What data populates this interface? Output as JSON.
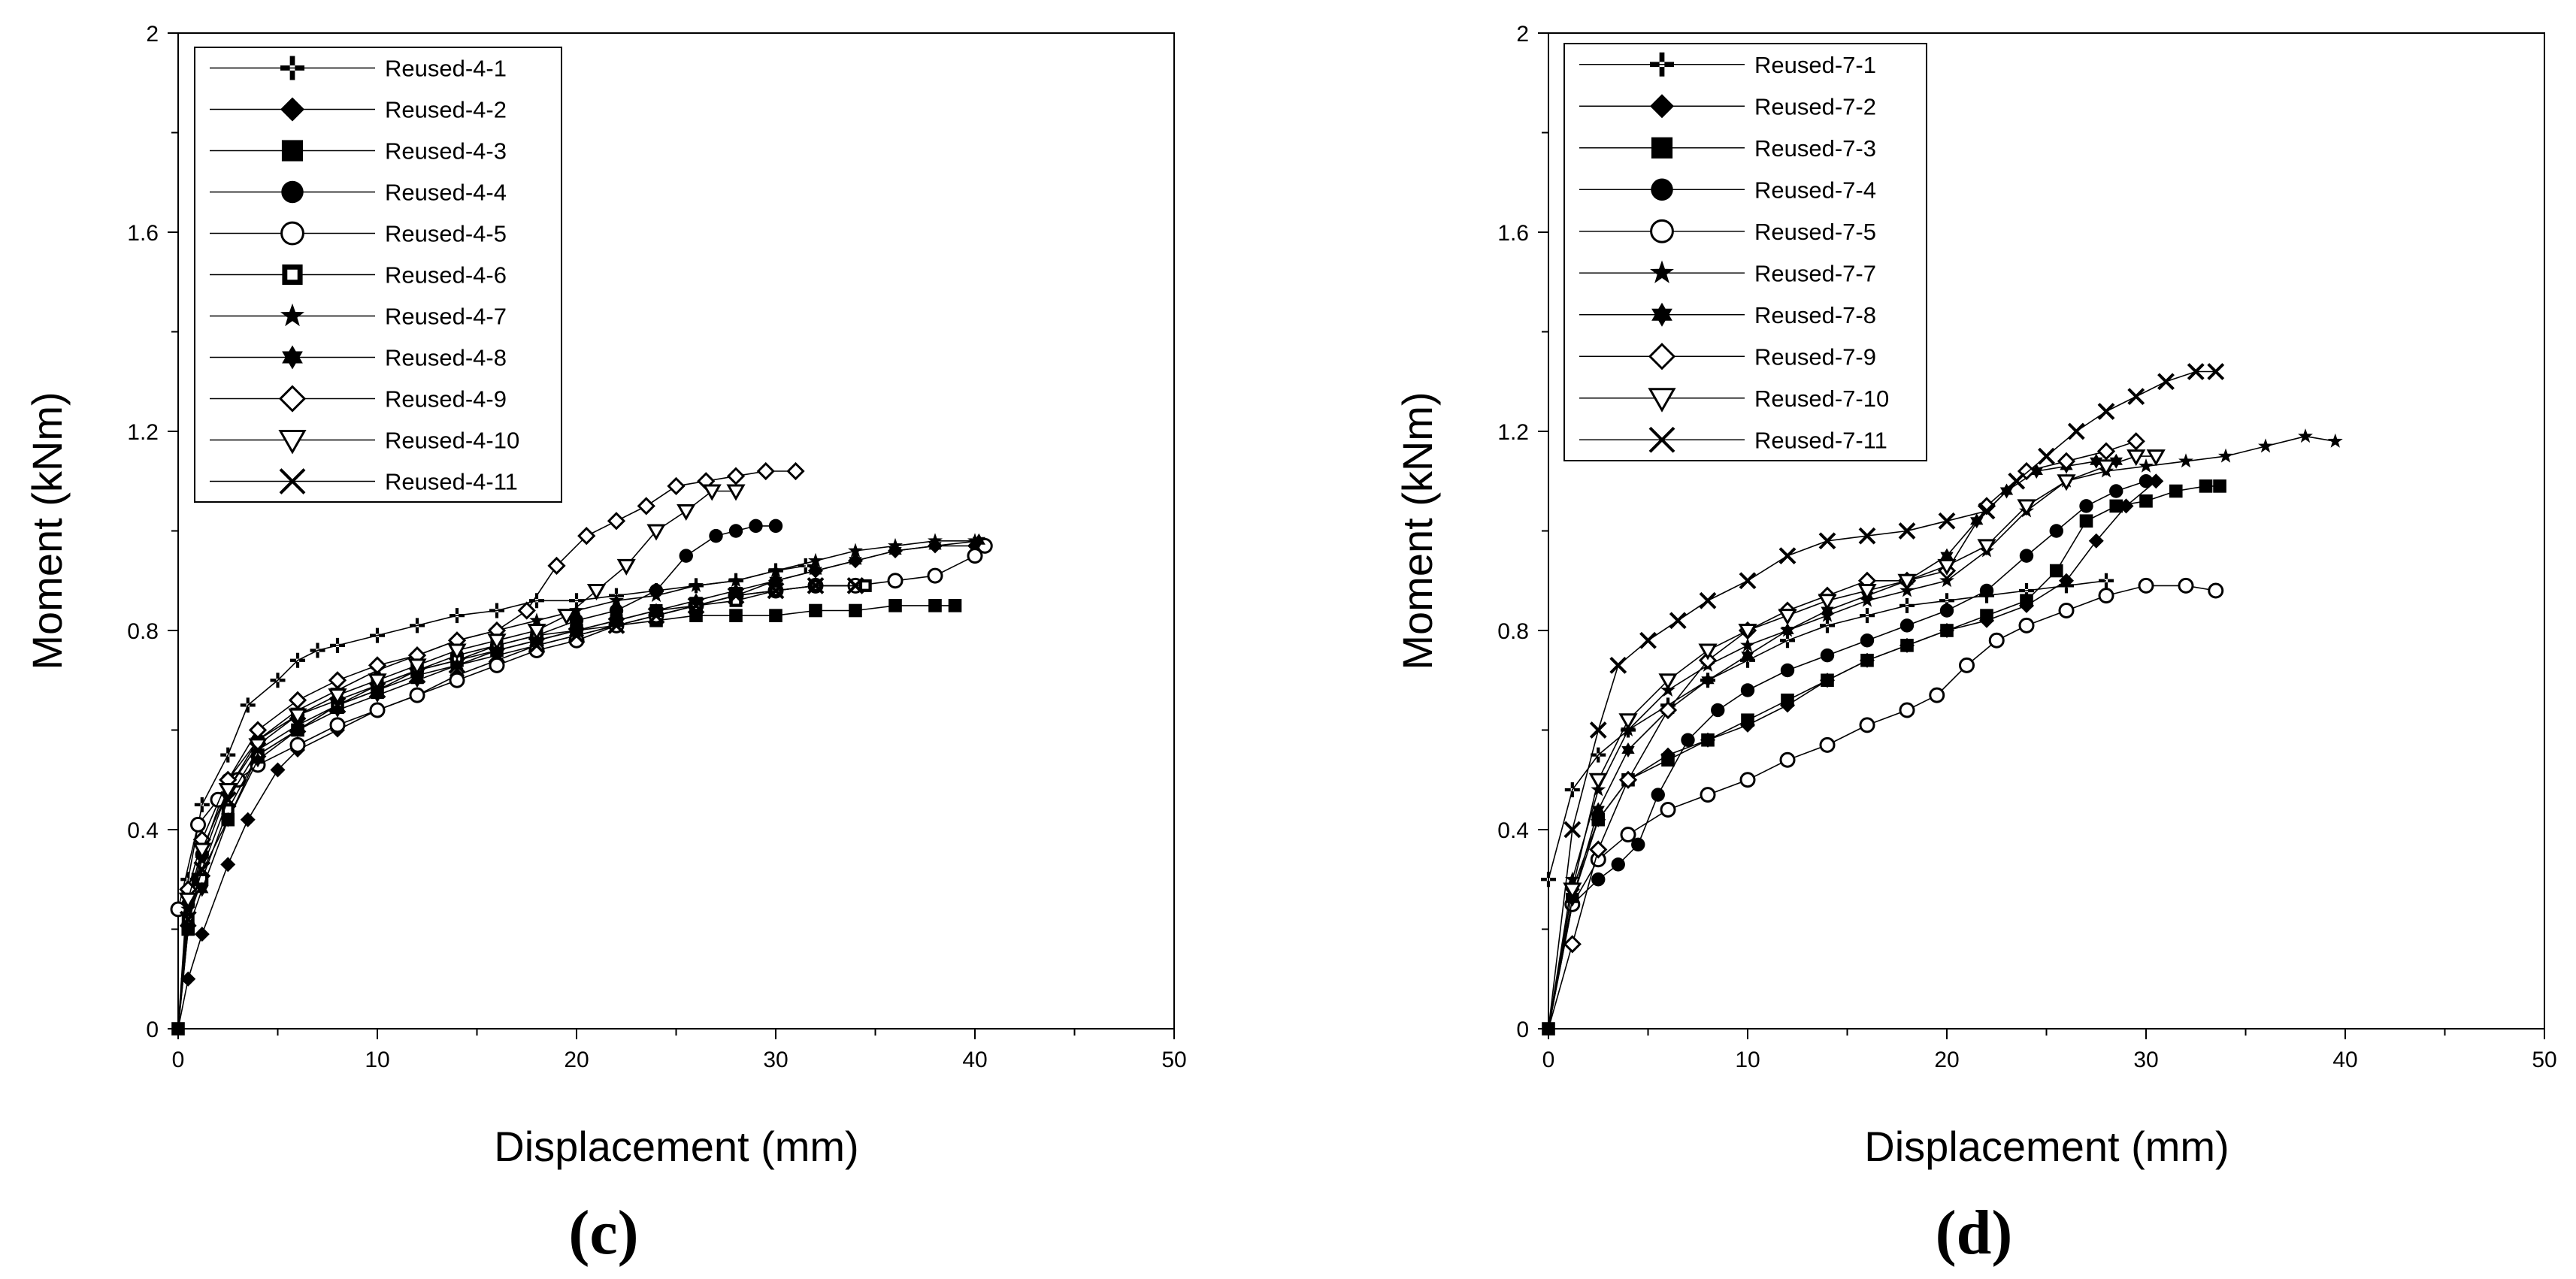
{
  "chart_data": [
    {
      "type": "line",
      "panel_label": "(c)",
      "xlabel": "Displacement (mm)",
      "ylabel": "Moment (kNm)",
      "xlim": [
        0,
        50
      ],
      "ylim": [
        0,
        2
      ],
      "xticks": [
        0,
        10,
        20,
        30,
        40,
        50
      ],
      "yticks": [
        0,
        0.4,
        0.8,
        1.2,
        1.6,
        2
      ],
      "ytick_labels": [
        "0",
        "0.4",
        "0.8",
        "1.2",
        "1.6",
        "2"
      ],
      "grid": false,
      "legend_position": "top-left",
      "series": [
        {
          "name": "Reused-4-1",
          "marker": "plus",
          "x": [
            0,
            0.5,
            1.2,
            2.5,
            3.5,
            5,
            6,
            7,
            8,
            10,
            12,
            14,
            16,
            18,
            20,
            22,
            24,
            26,
            28,
            30,
            31.5
          ],
          "y": [
            0,
            0.3,
            0.45,
            0.55,
            0.65,
            0.7,
            0.74,
            0.76,
            0.77,
            0.79,
            0.81,
            0.83,
            0.84,
            0.86,
            0.86,
            0.87,
            0.88,
            0.89,
            0.9,
            0.92,
            0.93
          ]
        },
        {
          "name": "Reused-4-2",
          "marker": "diamond",
          "x": [
            0,
            0.5,
            1.2,
            2.5,
            3.5,
            5,
            6,
            8,
            10,
            12,
            14,
            16,
            18,
            20,
            22,
            24,
            26,
            28,
            30,
            32,
            34,
            36,
            38,
            40
          ],
          "y": [
            0,
            0.1,
            0.19,
            0.33,
            0.42,
            0.52,
            0.56,
            0.6,
            0.64,
            0.67,
            0.71,
            0.74,
            0.77,
            0.79,
            0.81,
            0.83,
            0.85,
            0.87,
            0.9,
            0.92,
            0.94,
            0.96,
            0.97,
            0.97
          ]
        },
        {
          "name": "Reused-4-3",
          "marker": "square",
          "x": [
            0,
            0.5,
            1,
            2.5,
            4,
            6,
            8,
            10,
            12,
            14,
            16,
            18,
            20,
            22,
            24,
            26,
            28,
            30,
            32,
            34,
            36,
            38,
            39
          ],
          "y": [
            0,
            0.2,
            0.3,
            0.42,
            0.55,
            0.6,
            0.65,
            0.68,
            0.72,
            0.74,
            0.76,
            0.78,
            0.8,
            0.81,
            0.82,
            0.83,
            0.83,
            0.83,
            0.84,
            0.84,
            0.85,
            0.85,
            0.85
          ]
        },
        {
          "name": "Reused-4-4",
          "marker": "circle",
          "x": [
            0,
            0.5,
            1.2,
            2.5,
            4,
            6,
            8,
            10,
            12,
            14,
            16,
            18,
            20,
            22,
            24,
            25.5,
            27,
            28,
            29,
            30
          ],
          "y": [
            0,
            0.25,
            0.35,
            0.5,
            0.58,
            0.63,
            0.66,
            0.69,
            0.72,
            0.75,
            0.77,
            0.79,
            0.82,
            0.84,
            0.88,
            0.95,
            0.99,
            1,
            1.01,
            1.01
          ]
        },
        {
          "name": "Reused-4-5",
          "marker": "circle-open",
          "x": [
            0,
            1,
            2,
            3,
            4,
            6,
            8,
            10,
            12,
            14,
            16,
            18,
            20,
            22,
            24,
            26,
            28,
            30,
            32,
            34,
            36,
            38,
            40,
            40.5
          ],
          "y": [
            0.24,
            0.41,
            0.46,
            0.5,
            0.53,
            0.57,
            0.61,
            0.64,
            0.67,
            0.7,
            0.73,
            0.76,
            0.78,
            0.81,
            0.83,
            0.85,
            0.87,
            0.88,
            0.89,
            0.89,
            0.9,
            0.91,
            0.95,
            0.97
          ]
        },
        {
          "name": "Reused-4-6",
          "marker": "square-open",
          "x": [
            0,
            0.5,
            1.2,
            2.5,
            4,
            6,
            8,
            10,
            12,
            14,
            16,
            18,
            20,
            22,
            24,
            26,
            28,
            30,
            32,
            34.5
          ],
          "y": [
            0,
            0.22,
            0.3,
            0.44,
            0.55,
            0.6,
            0.65,
            0.69,
            0.72,
            0.74,
            0.77,
            0.79,
            0.8,
            0.82,
            0.84,
            0.85,
            0.86,
            0.88,
            0.89,
            0.89
          ]
        },
        {
          "name": "Reused-4-7",
          "marker": "star",
          "x": [
            0,
            0.5,
            1.2,
            2.5,
            4,
            6,
            8,
            10,
            12,
            14,
            16,
            18,
            20,
            22,
            24,
            26,
            28,
            30,
            32,
            34,
            36,
            38,
            40
          ],
          "y": [
            0,
            0.24,
            0.34,
            0.48,
            0.58,
            0.64,
            0.68,
            0.72,
            0.75,
            0.78,
            0.8,
            0.82,
            0.84,
            0.86,
            0.87,
            0.89,
            0.9,
            0.92,
            0.94,
            0.96,
            0.97,
            0.98,
            0.98
          ]
        },
        {
          "name": "Reused-4-8",
          "marker": "hexstar",
          "x": [
            0,
            0.5,
            1.2,
            2.5,
            4,
            6,
            8,
            10,
            12,
            14,
            16,
            18,
            20,
            22,
            24,
            26,
            28,
            30,
            32,
            34,
            36,
            38,
            40.2
          ],
          "y": [
            0,
            0.2,
            0.28,
            0.42,
            0.54,
            0.6,
            0.64,
            0.67,
            0.7,
            0.73,
            0.76,
            0.78,
            0.8,
            0.82,
            0.84,
            0.86,
            0.88,
            0.9,
            0.92,
            0.94,
            0.96,
            0.97,
            0.98
          ]
        },
        {
          "name": "Reused-4-9",
          "marker": "diamond-open",
          "x": [
            0,
            0.5,
            1.2,
            2.5,
            4,
            6,
            8,
            10,
            12,
            14,
            16,
            17.5,
            19,
            20.5,
            22,
            23.5,
            25,
            26.5,
            28,
            29.5,
            31
          ],
          "y": [
            0,
            0.28,
            0.38,
            0.5,
            0.6,
            0.66,
            0.7,
            0.73,
            0.75,
            0.78,
            0.8,
            0.84,
            0.93,
            0.99,
            1.02,
            1.05,
            1.09,
            1.1,
            1.11,
            1.12,
            1.12
          ]
        },
        {
          "name": "Reused-4-10",
          "marker": "triangle-down-open",
          "x": [
            0,
            0.5,
            1.2,
            2.5,
            4,
            6,
            8,
            10,
            12,
            14,
            16,
            18,
            19.5,
            21,
            22.5,
            24,
            25.5,
            26.8,
            28
          ],
          "y": [
            0,
            0.26,
            0.36,
            0.48,
            0.57,
            0.63,
            0.67,
            0.7,
            0.73,
            0.76,
            0.78,
            0.8,
            0.83,
            0.88,
            0.93,
            1,
            1.04,
            1.08,
            1.08
          ]
        },
        {
          "name": "Reused-4-11",
          "marker": "x",
          "x": [
            0,
            0.5,
            1.2,
            2.5,
            4,
            6,
            8,
            10,
            12,
            14,
            16,
            18,
            20,
            22,
            24,
            26,
            28,
            30,
            32,
            34
          ],
          "y": [
            0,
            0.22,
            0.32,
            0.46,
            0.56,
            0.61,
            0.65,
            0.68,
            0.71,
            0.73,
            0.75,
            0.77,
            0.79,
            0.81,
            0.83,
            0.85,
            0.87,
            0.88,
            0.89,
            0.89
          ]
        }
      ]
    },
    {
      "type": "line",
      "panel_label": "(d)",
      "xlabel": "Displacement (mm)",
      "ylabel": "Moment (kNm)",
      "xlim": [
        0,
        50
      ],
      "ylim": [
        0,
        2
      ],
      "xticks": [
        0,
        10,
        20,
        30,
        40,
        50
      ],
      "yticks": [
        0,
        0.4,
        0.8,
        1.2,
        1.6,
        2
      ],
      "ytick_labels": [
        "0",
        "0.4",
        "0.8",
        "1.2",
        "1.6",
        "2"
      ],
      "grid": false,
      "legend_position": "top-left",
      "series": [
        {
          "name": "Reused-7-1",
          "marker": "plus",
          "x": [
            0,
            1.2,
            2.5,
            4,
            6,
            8,
            10,
            12,
            14,
            16,
            18,
            20,
            22,
            24,
            26,
            28
          ],
          "y": [
            0.3,
            0.48,
            0.55,
            0.6,
            0.65,
            0.7,
            0.74,
            0.78,
            0.81,
            0.83,
            0.85,
            0.86,
            0.87,
            0.88,
            0.89,
            0.9
          ]
        },
        {
          "name": "Reused-7-2",
          "marker": "diamond",
          "x": [
            0,
            1.2,
            2.5,
            4,
            6,
            8,
            10,
            12,
            14,
            16,
            18,
            20,
            22,
            24,
            26,
            27.5,
            29,
            30.5
          ],
          "y": [
            0,
            0.28,
            0.42,
            0.5,
            0.55,
            0.58,
            0.61,
            0.65,
            0.7,
            0.74,
            0.77,
            0.8,
            0.82,
            0.85,
            0.9,
            0.98,
            1.05,
            1.1
          ]
        },
        {
          "name": "Reused-7-3",
          "marker": "square",
          "x": [
            0,
            1.2,
            2.5,
            4,
            6,
            8,
            10,
            12,
            14,
            16,
            18,
            20,
            22,
            24,
            25.5,
            27,
            28.5,
            30,
            31.5,
            33,
            33.7
          ],
          "y": [
            0,
            0.26,
            0.42,
            0.5,
            0.54,
            0.58,
            0.62,
            0.66,
            0.7,
            0.74,
            0.77,
            0.8,
            0.83,
            0.86,
            0.92,
            1.02,
            1.05,
            1.06,
            1.08,
            1.09,
            1.09
          ]
        },
        {
          "name": "Reused-7-4",
          "marker": "circle",
          "x": [
            0,
            1.2,
            2.5,
            3.5,
            4.5,
            5.5,
            7,
            8.5,
            10,
            12,
            14,
            16,
            18,
            20,
            22,
            24,
            25.5,
            27,
            28.5,
            30
          ],
          "y": [
            0,
            0.25,
            0.3,
            0.33,
            0.37,
            0.47,
            0.58,
            0.64,
            0.68,
            0.72,
            0.75,
            0.78,
            0.81,
            0.84,
            0.88,
            0.95,
            1,
            1.05,
            1.08,
            1.1
          ]
        },
        {
          "name": "Reused-7-5",
          "marker": "circle-open",
          "x": [
            0,
            1.2,
            2.5,
            4,
            6,
            8,
            10,
            12,
            14,
            16,
            18,
            19.5,
            21,
            22.5,
            24,
            26,
            28,
            30,
            32,
            33.5
          ],
          "y": [
            0,
            0.25,
            0.34,
            0.39,
            0.44,
            0.47,
            0.5,
            0.54,
            0.57,
            0.61,
            0.64,
            0.67,
            0.73,
            0.78,
            0.81,
            0.84,
            0.87,
            0.89,
            0.89,
            0.88
          ]
        },
        {
          "name": "Reused-7-7",
          "marker": "star",
          "x": [
            0,
            1.2,
            2.5,
            4,
            6,
            8,
            10,
            12,
            14,
            16,
            18,
            20,
            22,
            24,
            26,
            28,
            30,
            32,
            34,
            36,
            38,
            39.5
          ],
          "y": [
            0,
            0.3,
            0.48,
            0.6,
            0.68,
            0.73,
            0.77,
            0.8,
            0.83,
            0.86,
            0.88,
            0.9,
            0.96,
            1.04,
            1.1,
            1.12,
            1.13,
            1.14,
            1.15,
            1.17,
            1.19,
            1.18
          ]
        },
        {
          "name": "Reused-7-8",
          "marker": "hexstar",
          "x": [
            0,
            1.2,
            2.5,
            4,
            6,
            8,
            10,
            12,
            14,
            16,
            18,
            20,
            21.5,
            23,
            24.5,
            26,
            27.5,
            28.5
          ],
          "y": [
            0,
            0.26,
            0.44,
            0.56,
            0.64,
            0.7,
            0.75,
            0.8,
            0.84,
            0.87,
            0.9,
            0.95,
            1.02,
            1.08,
            1.12,
            1.13,
            1.14,
            1.14
          ]
        },
        {
          "name": "Reused-7-9",
          "marker": "diamond-open",
          "x": [
            0,
            1.2,
            2.5,
            4,
            6,
            8,
            10,
            12,
            14,
            16,
            18,
            20,
            22,
            24,
            26,
            28,
            29.5
          ],
          "y": [
            0,
            0.17,
            0.36,
            0.5,
            0.64,
            0.74,
            0.8,
            0.84,
            0.87,
            0.9,
            0.9,
            0.92,
            1.05,
            1.12,
            1.14,
            1.16,
            1.18
          ]
        },
        {
          "name": "Reused-7-10",
          "marker": "triangle-down-open",
          "x": [
            0,
            1.2,
            2.5,
            4,
            6,
            8,
            10,
            12,
            14,
            16,
            18,
            20,
            22,
            24,
            26,
            28,
            29.5,
            30.5
          ],
          "y": [
            0,
            0.28,
            0.5,
            0.62,
            0.7,
            0.76,
            0.8,
            0.83,
            0.86,
            0.88,
            0.9,
            0.93,
            0.97,
            1.05,
            1.1,
            1.13,
            1.15,
            1.15
          ]
        },
        {
          "name": "Reused-7-11",
          "marker": "x",
          "x": [
            0,
            1.2,
            2.5,
            3.5,
            5,
            6.5,
            8,
            10,
            12,
            14,
            16,
            18,
            20,
            22,
            23.5,
            25,
            26.5,
            28,
            29.5,
            31,
            32.5,
            33.5
          ],
          "y": [
            0,
            0.4,
            0.6,
            0.73,
            0.78,
            0.82,
            0.86,
            0.9,
            0.95,
            0.98,
            0.99,
            1,
            1.02,
            1.04,
            1.1,
            1.15,
            1.2,
            1.24,
            1.27,
            1.3,
            1.32,
            1.32
          ]
        }
      ]
    }
  ]
}
